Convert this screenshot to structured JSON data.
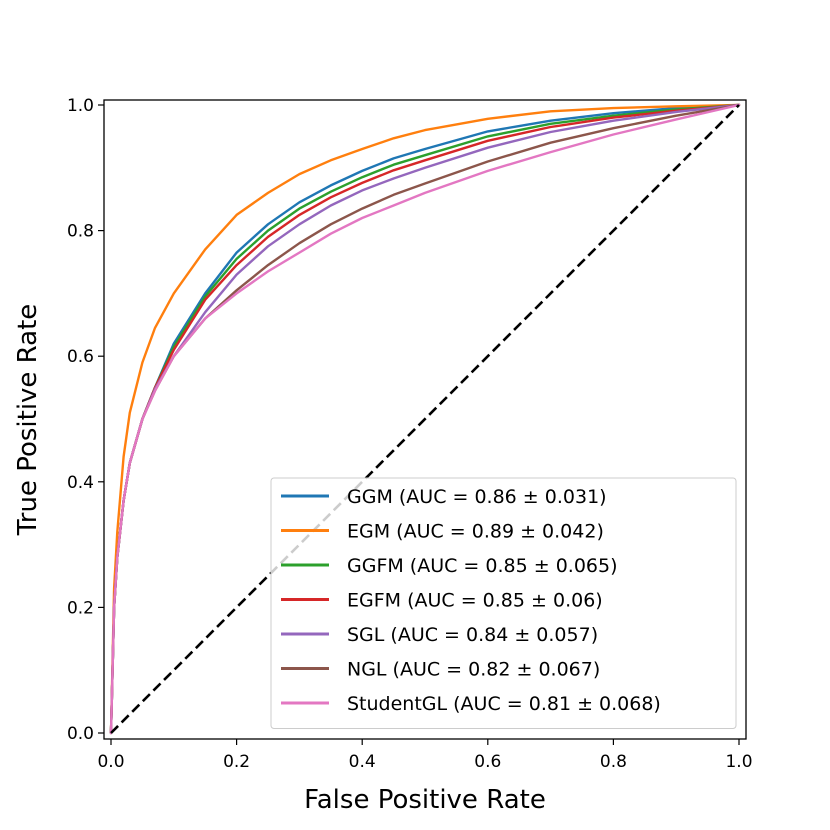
{
  "chart_data": {
    "type": "line",
    "title": "",
    "xlabel": "False Positive Rate",
    "ylabel": "True Positive Rate",
    "xlim": [
      0.0,
      1.0
    ],
    "ylim": [
      0.0,
      1.0
    ],
    "xticks": [
      "0.0",
      "0.2",
      "0.4",
      "0.6",
      "0.8",
      "1.0"
    ],
    "yticks": [
      "0.0",
      "0.2",
      "0.4",
      "0.6",
      "0.8",
      "1.0"
    ],
    "grid": false,
    "legend_position": "lower-right",
    "x": [
      0.0,
      0.005,
      0.01,
      0.02,
      0.03,
      0.05,
      0.07,
      0.1,
      0.15,
      0.2,
      0.25,
      0.3,
      0.35,
      0.4,
      0.45,
      0.5,
      0.6,
      0.7,
      0.8,
      0.9,
      1.0
    ],
    "series": [
      {
        "name": "GGM",
        "legend_label": "GGM (AUC = 0.86 ± 0.031)",
        "color": "#1f77b4",
        "values": [
          0.0,
          0.2,
          0.28,
          0.37,
          0.43,
          0.5,
          0.55,
          0.62,
          0.7,
          0.765,
          0.81,
          0.845,
          0.872,
          0.895,
          0.915,
          0.93,
          0.958,
          0.975,
          0.987,
          0.995,
          1.0
        ]
      },
      {
        "name": "EGM",
        "legend_label": "EGM (AUC = 0.89 ± 0.042)",
        "color": "#ff7f0e",
        "values": [
          0.0,
          0.23,
          0.32,
          0.44,
          0.51,
          0.59,
          0.645,
          0.7,
          0.77,
          0.825,
          0.86,
          0.89,
          0.912,
          0.93,
          0.947,
          0.96,
          0.978,
          0.99,
          0.995,
          0.998,
          1.0
        ]
      },
      {
        "name": "GGFM",
        "legend_label": "GGFM (AUC = 0.85 ± 0.065)",
        "color": "#2ca02c",
        "values": [
          0.0,
          0.2,
          0.28,
          0.37,
          0.43,
          0.5,
          0.55,
          0.615,
          0.695,
          0.755,
          0.8,
          0.835,
          0.862,
          0.885,
          0.905,
          0.92,
          0.95,
          0.97,
          0.983,
          0.993,
          1.0
        ]
      },
      {
        "name": "EGFM",
        "legend_label": "EGFM (AUC = 0.85 ± 0.06)",
        "color": "#d62728",
        "values": [
          0.0,
          0.2,
          0.28,
          0.37,
          0.43,
          0.5,
          0.55,
          0.61,
          0.69,
          0.745,
          0.79,
          0.825,
          0.853,
          0.876,
          0.896,
          0.912,
          0.943,
          0.965,
          0.98,
          0.991,
          1.0
        ]
      },
      {
        "name": "SGL",
        "legend_label": "SGL (AUC = 0.84 ± 0.057)",
        "color": "#9467bd",
        "values": [
          0.0,
          0.2,
          0.28,
          0.37,
          0.43,
          0.5,
          0.548,
          0.6,
          0.67,
          0.73,
          0.775,
          0.81,
          0.84,
          0.864,
          0.883,
          0.9,
          0.932,
          0.957,
          0.975,
          0.989,
          1.0
        ]
      },
      {
        "name": "NGL",
        "legend_label": "NGL (AUC = 0.82 ± 0.067)",
        "color": "#8c564b",
        "values": [
          0.0,
          0.2,
          0.28,
          0.37,
          0.43,
          0.5,
          0.545,
          0.6,
          0.66,
          0.705,
          0.745,
          0.78,
          0.81,
          0.835,
          0.857,
          0.875,
          0.91,
          0.94,
          0.963,
          0.983,
          1.0
        ]
      },
      {
        "name": "StudentGL",
        "legend_label": "StudentGL (AUC = 0.81 ± 0.068)",
        "color": "#e377c2",
        "values": [
          0.0,
          0.2,
          0.28,
          0.37,
          0.43,
          0.5,
          0.545,
          0.6,
          0.66,
          0.7,
          0.735,
          0.765,
          0.795,
          0.82,
          0.84,
          0.86,
          0.895,
          0.925,
          0.953,
          0.977,
          1.0
        ]
      }
    ],
    "reference_line": {
      "name": "chance",
      "color": "#000000",
      "style": "dashed",
      "x": [
        0.0,
        1.0
      ],
      "values": [
        0.0,
        1.0
      ]
    }
  }
}
